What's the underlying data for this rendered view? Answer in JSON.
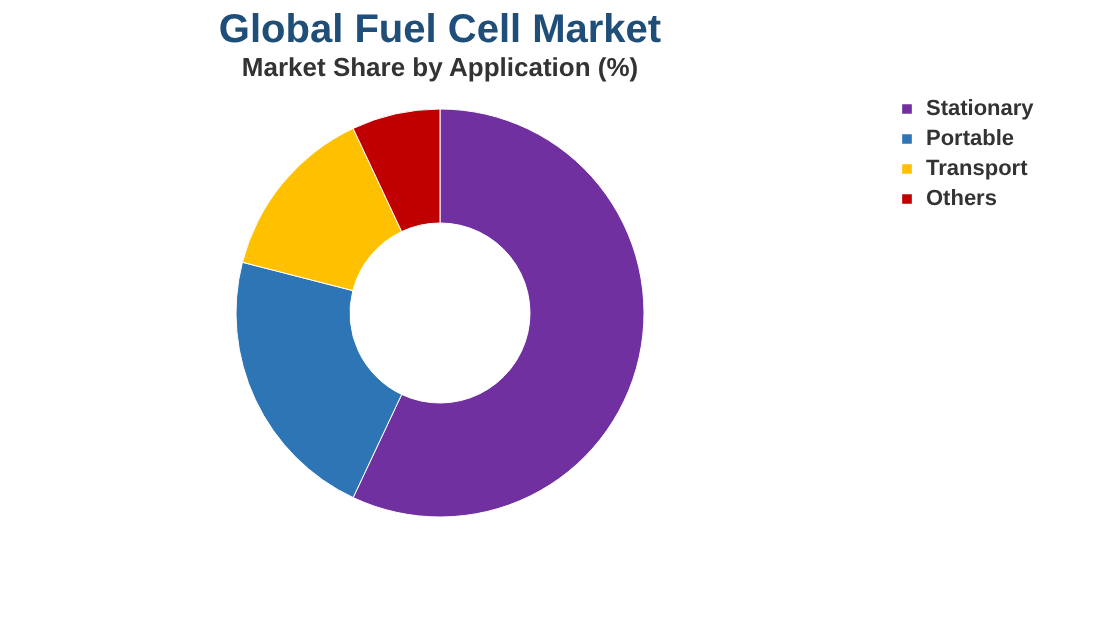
{
  "chart_data": {
    "type": "donut",
    "title": "Global Fuel Cell Market",
    "subtitle": "Market Share by Application (%)",
    "categories": [
      "Stationary",
      "Portable",
      "Transport",
      "Others"
    ],
    "values": [
      57,
      22,
      14,
      7
    ],
    "colors": [
      "#7030a0",
      "#2e75b6",
      "#ffc000",
      "#c00000"
    ],
    "legend": "right"
  }
}
